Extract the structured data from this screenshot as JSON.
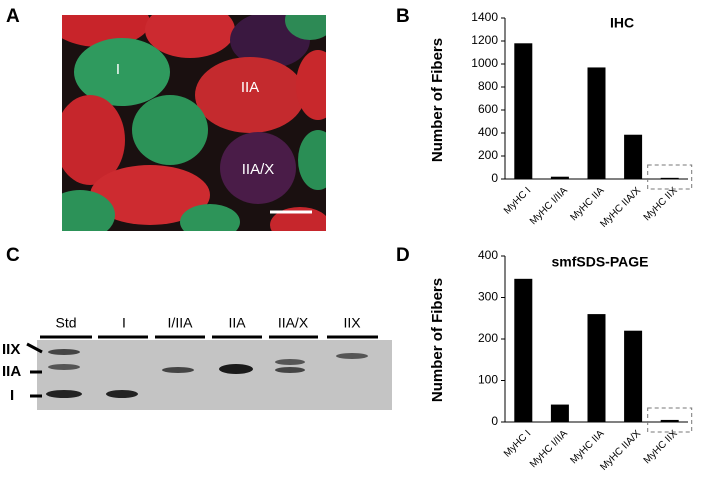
{
  "panel_labels": [
    "A",
    "B",
    "C",
    "D"
  ],
  "micrograph_labels": [
    "I",
    "IIA",
    "IIA/X"
  ],
  "gel": {
    "lanes": [
      "Std",
      "I",
      "I/IIA",
      "IIA",
      "IIA/X",
      "IIX"
    ],
    "bands": [
      "IIX",
      "IIA",
      "I"
    ]
  },
  "chart_data": [
    {
      "type": "bar",
      "title": "IHC",
      "y_label": "Number of Fibers",
      "categories": [
        "MyHC I",
        "MyHC I/IIA",
        "MyHC IIA",
        "MyHC IIA/X",
        "MyHC IIX"
      ],
      "values": [
        1180,
        20,
        970,
        385,
        10
      ],
      "color": "#000000",
      "ylim": [
        0,
        1400
      ],
      "yticks": [
        0,
        200,
        400,
        600,
        800,
        1000,
        1200,
        1400
      ]
    },
    {
      "type": "bar",
      "title": "smfSDS-PAGE",
      "y_label": "Number of Fibers",
      "categories": [
        "MyHC I",
        "MyHC I/IIA",
        "MyHC IIA",
        "MyHC IIA/X",
        "MyHC IIX"
      ],
      "values": [
        345,
        42,
        260,
        220,
        5
      ],
      "color": "#000000",
      "ylim": [
        0,
        400
      ],
      "yticks": [
        0,
        100,
        200,
        300,
        400
      ]
    }
  ]
}
